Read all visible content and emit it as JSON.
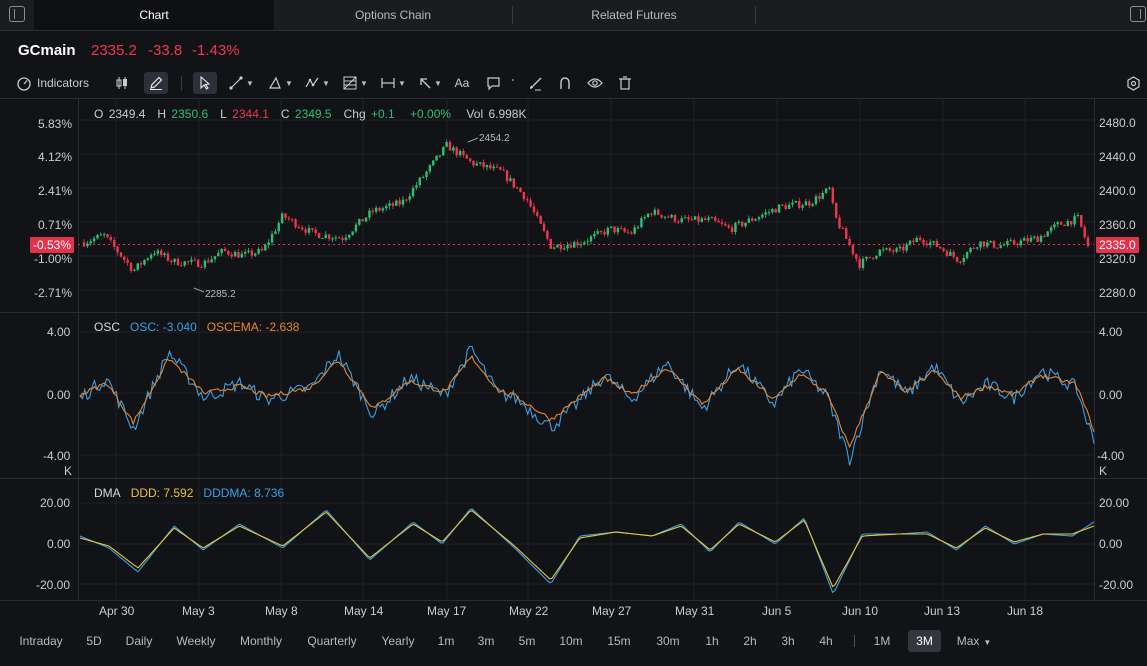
{
  "tabs": [
    {
      "label": "Chart",
      "active": true
    },
    {
      "label": "Options Chain",
      "active": false
    },
    {
      "label": "Related Futures",
      "active": false
    }
  ],
  "quote": {
    "symbol": "GCmain",
    "price": "2335.2",
    "change": "-33.8",
    "change_pct": "-1.43%"
  },
  "toolbar": {
    "indicators_label": "Indicators",
    "text_tool_label": "Aa"
  },
  "icons": {
    "left_panel": "sidebar-left-icon",
    "right_panel": "sidebar-right-icon",
    "indicators": "gauge-icon",
    "candles": "candlestick-icon",
    "draw": "pencil-icon",
    "cursor": "cursor-icon",
    "trend": "trendline-icon",
    "shapes": "triangle-icon",
    "pattern": "pattern-icon",
    "fib": "fibonacci-icon",
    "measure": "measure-icon",
    "arrow": "arrow-icon",
    "comment": "comment-icon",
    "brush": "brush-icon",
    "magnet": "magnet-icon",
    "eye": "eye-icon",
    "trash": "trash-icon",
    "settings": "gear-icon"
  },
  "ohlc": {
    "o_label": "O",
    "o": "2349.4",
    "h_label": "H",
    "h": "2350.6",
    "l_label": "L",
    "l": "2344.1",
    "c_label": "C",
    "c": "2349.5",
    "chg_label": "Chg",
    "chg": "+0.1",
    "chg_pct": "+0.00%",
    "vol_label": "Vol",
    "vol": "6.998K"
  },
  "price_panel": {
    "left_ticks": [
      "5.83%",
      "4.12%",
      "2.41%",
      "0.71%",
      "-1.00%",
      "-2.71%"
    ],
    "right_ticks": [
      "2480.0",
      "2440.0",
      "2400.0",
      "2360.0",
      "2320.0",
      "2280.0"
    ],
    "current_pct_tag": "-0.53%",
    "current_price_tag": "2335.0",
    "high_annotation": "2454.2",
    "low_annotation": "2285.2"
  },
  "osc_panel": {
    "title": "OSC",
    "osc_label": "OSC:",
    "osc_value": "-3.040",
    "oscema_label": "OSCEMA:",
    "oscema_value": "-2.638",
    "left_ticks": [
      "4.00",
      "0.00",
      "-4.00"
    ],
    "right_ticks": [
      "4.00",
      "0.00",
      "-4.00"
    ],
    "unit": "K"
  },
  "dma_panel": {
    "title": "DMA",
    "ddd_label": "DDD:",
    "ddd_value": "7.592",
    "dddma_label": "DDDMA:",
    "dddma_value": "8.736",
    "left_ticks": [
      "20.00",
      "0.00",
      "-20.00"
    ],
    "right_ticks": [
      "20.00",
      "0.00",
      "-20.00"
    ]
  },
  "x_axis": [
    "Apr 30",
    "May 3",
    "May 8",
    "May 14",
    "May 17",
    "May 22",
    "May 27",
    "May 31",
    "Jun 5",
    "Jun 10",
    "Jun 13",
    "Jun 18"
  ],
  "timeframes": [
    {
      "label": "Intraday",
      "active": false
    },
    {
      "label": "5D",
      "active": false
    },
    {
      "label": "Daily",
      "active": false
    },
    {
      "label": "Weekly",
      "active": false
    },
    {
      "label": "Monthly",
      "active": false
    },
    {
      "label": "Quarterly",
      "active": false
    },
    {
      "label": "Yearly",
      "active": false
    },
    {
      "label": "1m",
      "active": false
    },
    {
      "label": "3m",
      "active": false
    },
    {
      "label": "5m",
      "active": false
    },
    {
      "label": "10m",
      "active": false
    },
    {
      "label": "15m",
      "active": false
    },
    {
      "label": "30m",
      "active": false
    },
    {
      "label": "1h",
      "active": false
    },
    {
      "label": "2h",
      "active": false
    },
    {
      "label": "3h",
      "active": false
    },
    {
      "label": "4h",
      "active": false
    },
    {
      "label": "1M",
      "active": false
    },
    {
      "label": "3M",
      "active": true
    },
    {
      "label": "Max",
      "active": false
    }
  ],
  "colors": {
    "up": "#2fbf71",
    "down": "#f0364f",
    "osc": "#3aa0e6",
    "oscema": "#e7862e",
    "ddd": "#e9c43a",
    "dddma": "#3aa0e6"
  },
  "chart_data": [
    {
      "type": "candlestick",
      "ylim": [
        2270,
        2490
      ],
      "path": [
        [
          0,
          2340
        ],
        [
          0.02,
          2348
        ],
        [
          0.05,
          2308
        ],
        [
          0.07,
          2330
        ],
        [
          0.09,
          2318
        ],
        [
          0.12,
          2316
        ],
        [
          0.14,
          2330
        ],
        [
          0.16,
          2325
        ],
        [
          0.18,
          2330
        ],
        [
          0.2,
          2370
        ],
        [
          0.23,
          2350
        ],
        [
          0.26,
          2345
        ],
        [
          0.29,
          2375
        ],
        [
          0.32,
          2385
        ],
        [
          0.345,
          2420
        ],
        [
          0.365,
          2450
        ],
        [
          0.39,
          2430
        ],
        [
          0.42,
          2420
        ],
        [
          0.445,
          2390
        ],
        [
          0.47,
          2335
        ],
        [
          0.5,
          2340
        ],
        [
          0.53,
          2355
        ],
        [
          0.55,
          2350
        ],
        [
          0.57,
          2375
        ],
        [
          0.6,
          2365
        ],
        [
          0.63,
          2365
        ],
        [
          0.65,
          2355
        ],
        [
          0.68,
          2370
        ],
        [
          0.7,
          2380
        ],
        [
          0.73,
          2385
        ],
        [
          0.75,
          2400
        ],
        [
          0.755,
          2370
        ],
        [
          0.78,
          2315
        ],
        [
          0.8,
          2330
        ],
        [
          0.82,
          2330
        ],
        [
          0.84,
          2345
        ],
        [
          0.86,
          2335
        ],
        [
          0.88,
          2320
        ],
        [
          0.9,
          2340
        ],
        [
          0.92,
          2336
        ],
        [
          0.94,
          2340
        ],
        [
          0.96,
          2345
        ],
        [
          0.98,
          2360
        ],
        [
          1.0,
          2367
        ],
        [
          1.01,
          2335
        ]
      ]
    },
    {
      "type": "line",
      "ylim": [
        -5.2,
        4.6
      ],
      "series": [
        {
          "name": "OSC",
          "path": [
            [
              0,
              -0.5
            ],
            [
              0.03,
              0.8
            ],
            [
              0.06,
              -2.5
            ],
            [
              0.1,
              2.5
            ],
            [
              0.14,
              -0.5
            ],
            [
              0.18,
              0.5
            ],
            [
              0.21,
              -0.6
            ],
            [
              0.26,
              0.2
            ],
            [
              0.29,
              2.4
            ],
            [
              0.33,
              -1.6
            ],
            [
              0.37,
              0.8
            ],
            [
              0.41,
              -0.3
            ],
            [
              0.44,
              2.7
            ],
            [
              0.47,
              -0.2
            ],
            [
              0.49,
              -0.5
            ],
            [
              0.53,
              -2.4
            ],
            [
              0.56,
              -0.8
            ],
            [
              0.59,
              1.0
            ],
            [
              0.62,
              -0.6
            ],
            [
              0.66,
              1.8
            ],
            [
              0.7,
              -1.2
            ],
            [
              0.74,
              1.8
            ],
            [
              0.78,
              -0.9
            ],
            [
              0.81,
              1.4
            ],
            [
              0.84,
              -0.4
            ],
            [
              0.865,
              -4.5
            ],
            [
              0.9,
              1.5
            ],
            [
              0.93,
              -0.3
            ],
            [
              0.96,
              1.6
            ],
            [
              0.99,
              -0.8
            ],
            [
              1.02,
              0.4
            ],
            [
              1.05,
              -0.5
            ],
            [
              1.08,
              1.3
            ],
            [
              1.12,
              0.2
            ],
            [
              1.14,
              -3.4
            ]
          ]
        },
        {
          "name": "OSCEMA",
          "path": [
            [
              0,
              -0.3
            ],
            [
              0.03,
              0.5
            ],
            [
              0.06,
              -2.1
            ],
            [
              0.1,
              2.1
            ],
            [
              0.14,
              -0.2
            ],
            [
              0.18,
              0.3
            ],
            [
              0.21,
              -0.4
            ],
            [
              0.26,
              0.2
            ],
            [
              0.29,
              2.0
            ],
            [
              0.33,
              -1.2
            ],
            [
              0.37,
              0.6
            ],
            [
              0.41,
              -0.1
            ],
            [
              0.44,
              2.2
            ],
            [
              0.47,
              0.0
            ],
            [
              0.49,
              -0.4
            ],
            [
              0.53,
              -1.9
            ],
            [
              0.56,
              -0.5
            ],
            [
              0.59,
              0.8
            ],
            [
              0.62,
              -0.3
            ],
            [
              0.66,
              1.5
            ],
            [
              0.7,
              -0.9
            ],
            [
              0.74,
              1.4
            ],
            [
              0.78,
              -0.6
            ],
            [
              0.81,
              1.1
            ],
            [
              0.84,
              -0.2
            ],
            [
              0.865,
              -3.7
            ],
            [
              0.9,
              1.2
            ],
            [
              0.93,
              -0.1
            ],
            [
              0.96,
              1.3
            ],
            [
              0.99,
              -0.5
            ],
            [
              1.02,
              0.3
            ],
            [
              1.05,
              -0.3
            ],
            [
              1.08,
              1.0
            ],
            [
              1.12,
              0.4
            ],
            [
              1.14,
              -2.6
            ]
          ]
        }
      ]
    },
    {
      "type": "line",
      "ylim": [
        -28,
        24
      ],
      "series": [
        {
          "name": "DDD",
          "path": [
            [
              0,
              3
            ],
            [
              0.04,
              -3
            ],
            [
              0.08,
              -15
            ],
            [
              0.13,
              8
            ],
            [
              0.17,
              -4
            ],
            [
              0.22,
              9
            ],
            [
              0.28,
              -3
            ],
            [
              0.34,
              16
            ],
            [
              0.4,
              -9
            ],
            [
              0.46,
              10
            ],
            [
              0.5,
              -1
            ],
            [
              0.54,
              17
            ],
            [
              0.6,
              -3
            ],
            [
              0.65,
              -21
            ],
            [
              0.69,
              3
            ],
            [
              0.74,
              5
            ],
            [
              0.79,
              3
            ],
            [
              0.83,
              9
            ],
            [
              0.87,
              -5
            ],
            [
              0.91,
              10
            ],
            [
              0.96,
              -1
            ],
            [
              1.0,
              12
            ],
            [
              1.04,
              -26
            ],
            [
              1.08,
              4
            ],
            [
              1.13,
              4
            ],
            [
              1.17,
              5
            ],
            [
              1.21,
              -4
            ],
            [
              1.25,
              8
            ],
            [
              1.29,
              -1
            ],
            [
              1.33,
              4
            ],
            [
              1.37,
              3
            ],
            [
              1.4,
              10
            ]
          ]
        },
        {
          "name": "DDDMA",
          "path": [
            [
              0,
              2
            ],
            [
              0.04,
              -2
            ],
            [
              0.08,
              -13
            ],
            [
              0.13,
              7
            ],
            [
              0.17,
              -3
            ],
            [
              0.22,
              8
            ],
            [
              0.28,
              -2
            ],
            [
              0.34,
              15
            ],
            [
              0.4,
              -8
            ],
            [
              0.46,
              9
            ],
            [
              0.5,
              0
            ],
            [
              0.54,
              16
            ],
            [
              0.6,
              -2
            ],
            [
              0.65,
              -19
            ],
            [
              0.69,
              2
            ],
            [
              0.74,
              5
            ],
            [
              0.79,
              3
            ],
            [
              0.83,
              8
            ],
            [
              0.87,
              -4
            ],
            [
              0.91,
              9
            ],
            [
              0.96,
              0
            ],
            [
              1.0,
              11
            ],
            [
              1.04,
              -23
            ],
            [
              1.08,
              3
            ],
            [
              1.13,
              4
            ],
            [
              1.17,
              4
            ],
            [
              1.21,
              -3
            ],
            [
              1.25,
              7
            ],
            [
              1.29,
              0
            ],
            [
              1.33,
              4
            ],
            [
              1.37,
              4
            ],
            [
              1.4,
              8
            ]
          ]
        }
      ]
    }
  ]
}
